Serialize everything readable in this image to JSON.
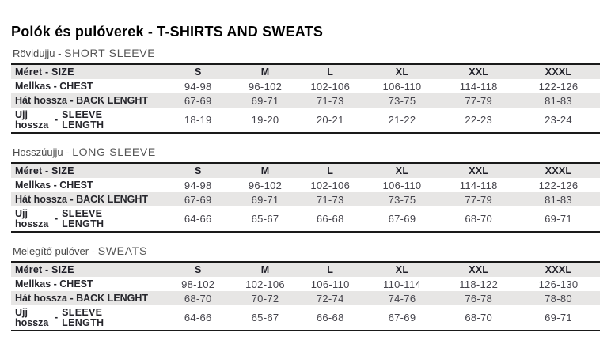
{
  "page": {
    "title": "Polók és pulóverek - T-SHIRTS AND SWEATS"
  },
  "table": {
    "size_columns": [
      "S",
      "M",
      "L",
      "XL",
      "XXL",
      "XXXL"
    ],
    "labels": {
      "size": "Méret - SIZE",
      "chest": "Mellkas - CHEST",
      "back": "Hát hossza - BACK LENGHT",
      "sleeve": {
        "hu": "Ujj hossza",
        "dash": "-",
        "en": "SLEEVE LENGTH"
      }
    }
  },
  "sections": [
    {
      "title_hu": "Rövidujju",
      "dash": "-",
      "title_en": "SHORT SLEEVE",
      "chest": [
        "94-98",
        "96-102",
        "102-106",
        "106-110",
        "114-118",
        "122-126"
      ],
      "back": [
        "67-69",
        "69-71",
        "71-73",
        "73-75",
        "77-79",
        "81-83"
      ],
      "sleeve": [
        "18-19",
        "19-20",
        "20-21",
        "21-22",
        "22-23",
        "23-24"
      ]
    },
    {
      "title_hu": "Hosszúujju",
      "dash": "-",
      "title_en": "LONG SLEEVE",
      "chest": [
        "94-98",
        "96-102",
        "102-106",
        "106-110",
        "114-118",
        "122-126"
      ],
      "back": [
        "67-69",
        "69-71",
        "71-73",
        "73-75",
        "77-79",
        "81-83"
      ],
      "sleeve": [
        "64-66",
        "65-67",
        "66-68",
        "67-69",
        "68-70",
        "69-71"
      ]
    },
    {
      "title_hu": "Melegítő pulóver",
      "dash": "-",
      "title_en": "SWEATS",
      "chest": [
        "98-102",
        "102-106",
        "106-110",
        "110-114",
        "118-122",
        "126-130"
      ],
      "back": [
        "68-70",
        "70-72",
        "72-74",
        "74-76",
        "76-78",
        "78-80"
      ],
      "sleeve": [
        "64-66",
        "65-67",
        "66-68",
        "67-69",
        "68-70",
        "69-71"
      ]
    }
  ],
  "colors": {
    "title_text": "#000000",
    "section_text": "#4a4a4a",
    "label_text": "#26262c",
    "value_text": "#45444c",
    "row_stripe": "#e7e6e5",
    "table_border": "#1a1a1a",
    "background": "#ffffff"
  }
}
